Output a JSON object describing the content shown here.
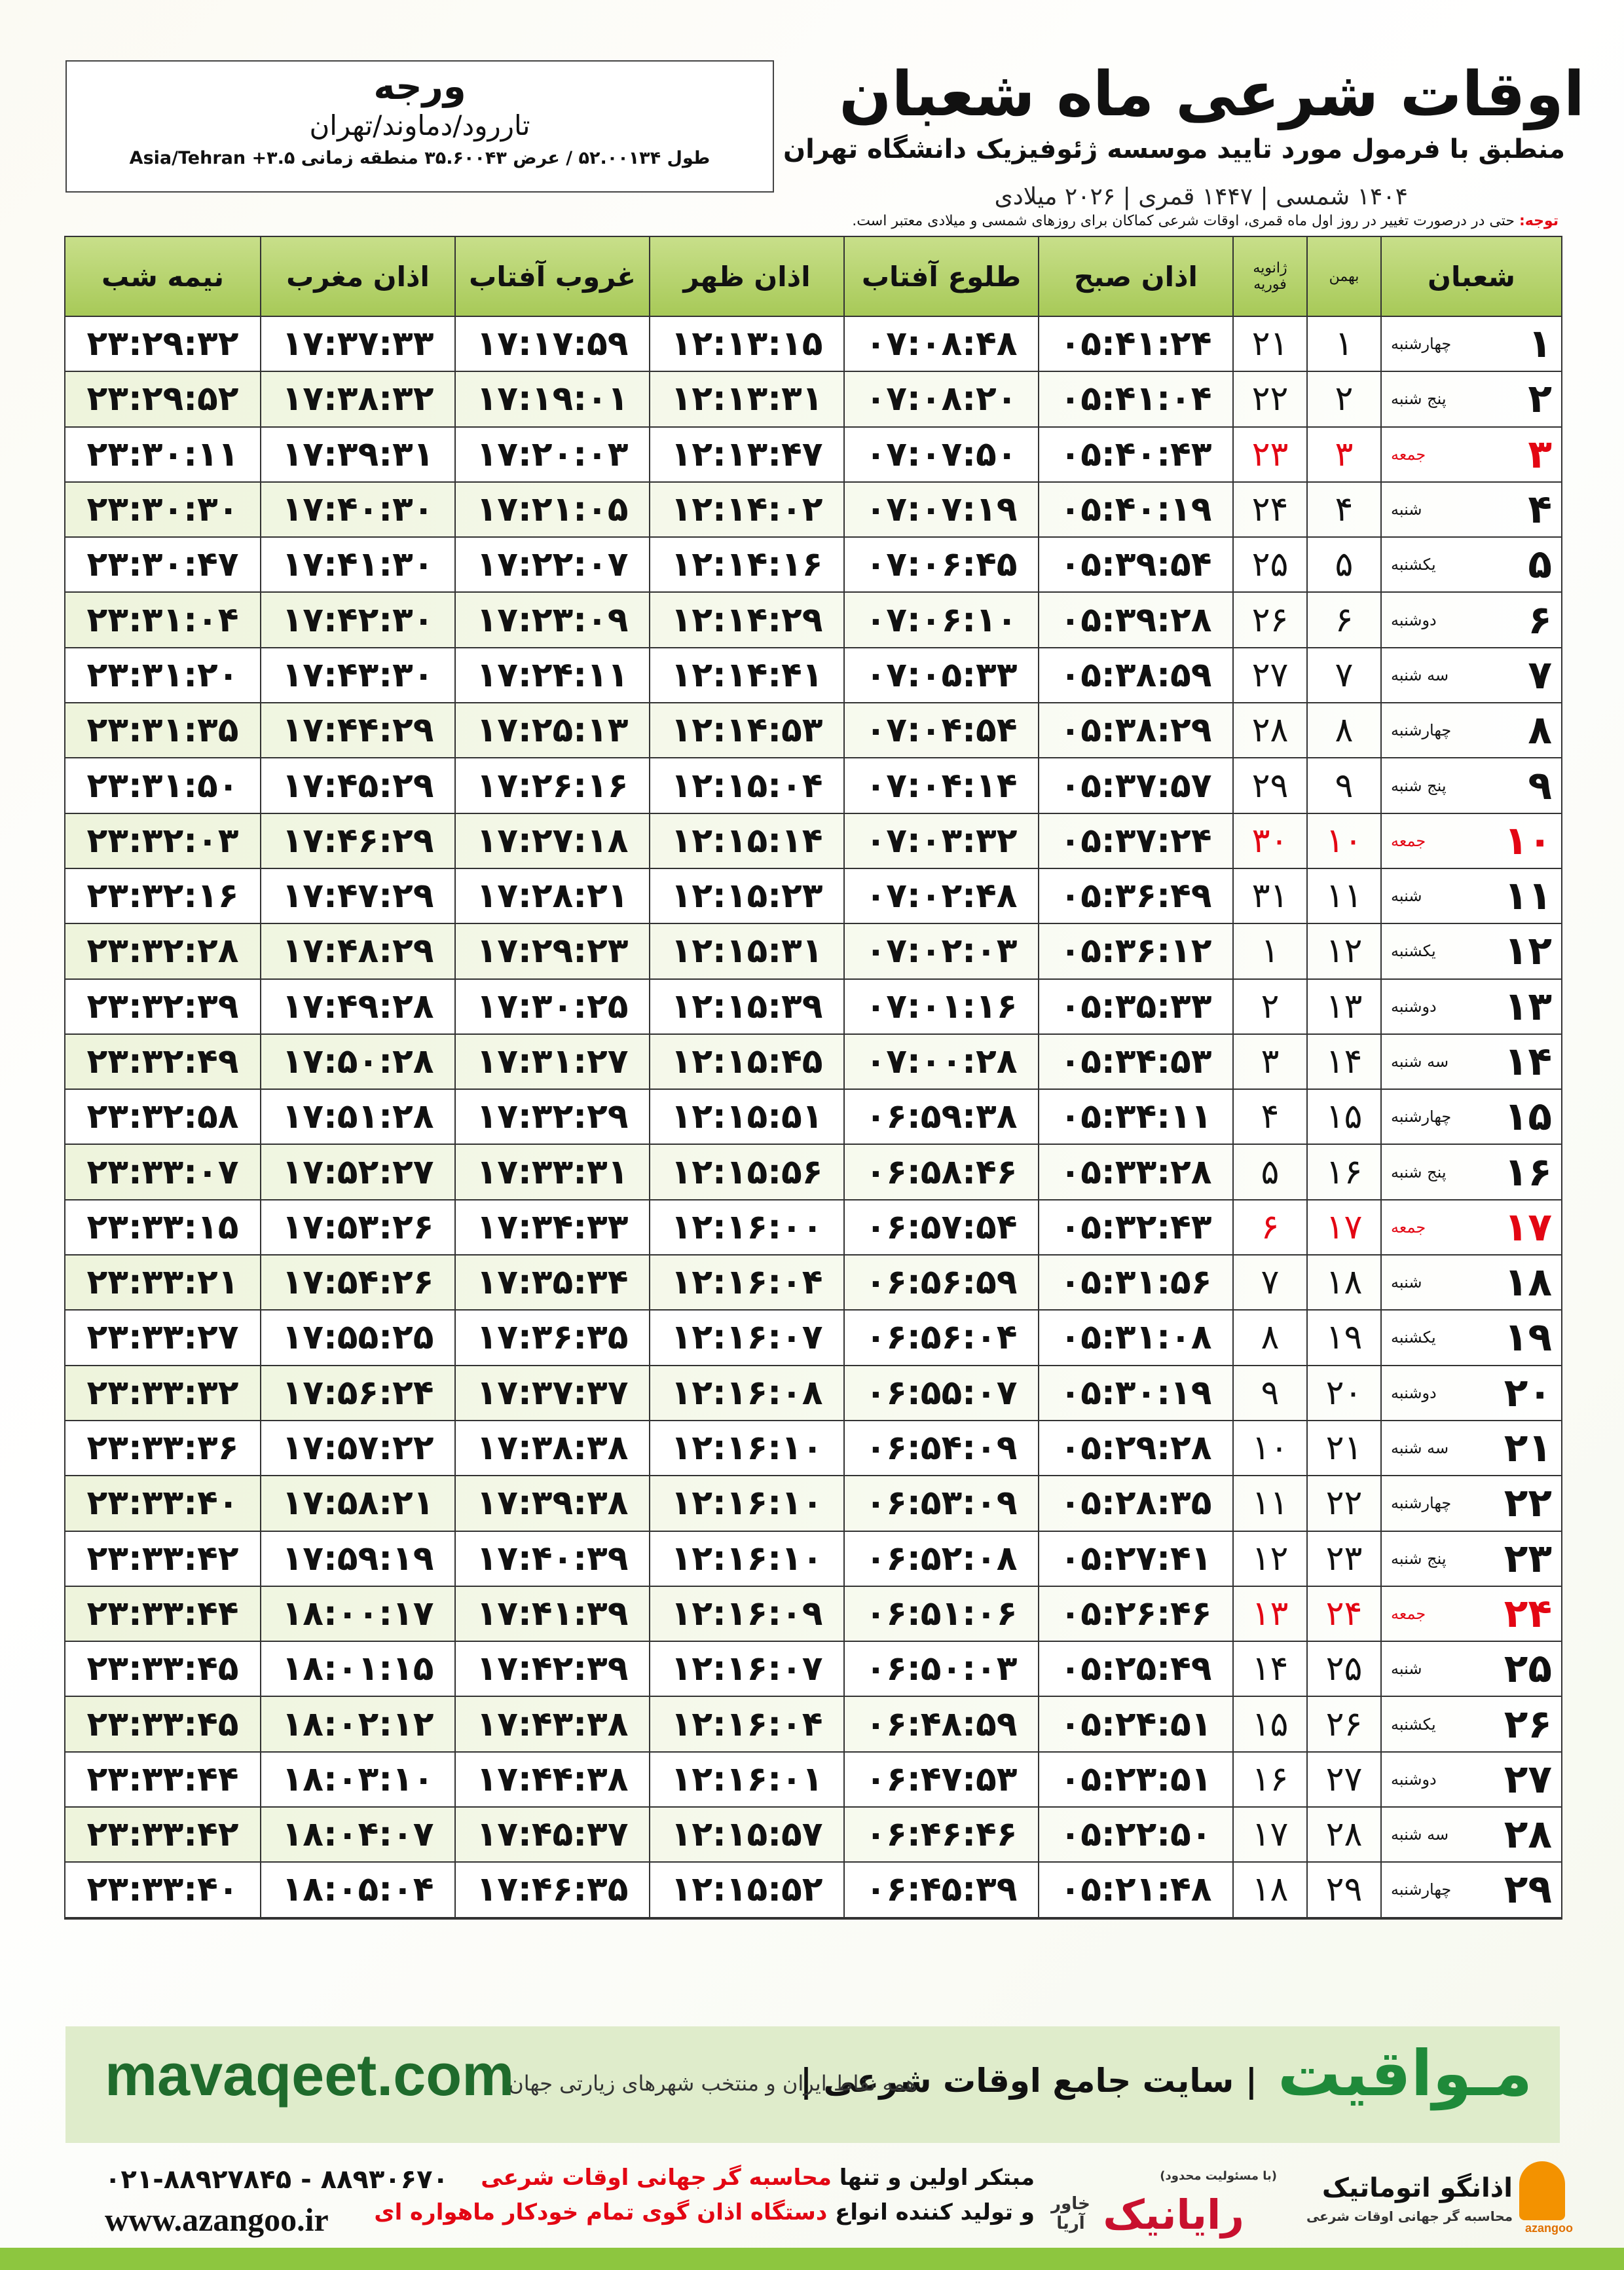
{
  "header": {
    "title": "اوقات شرعی ماه شعبان",
    "subtitle": "منطبق با فرمول مورد تایید موسسه ژئوفیزیک دانشگاه تهران",
    "dates": "۱۴۰۴ شمسی | ۱۴۴۷ قمری | ۲۰۲۶ میلادی",
    "location": {
      "name": "ورجه",
      "region": "تاررود/دماوند/تهران",
      "coords": "طول ۵۲.۰۰۱۳۴ / عرض ۳۵.۶۰۰۴۳ منطقه زمانی ۳.۵+ Asia/Tehran"
    },
    "note": {
      "label": "توجه:",
      "text": "حتی در درصورت تغییر در روز اول ماه قمری، اوقات شرعی کماکان برای روزهای شمسی و میلادی معتبر است."
    }
  },
  "table": {
    "columns": {
      "shaban": "شعبان",
      "bahman": "بهمن",
      "gregorian": [
        "ژانویه",
        "فوریه"
      ],
      "times": [
        "اذان صبح",
        "طلوع آفتاب",
        "اذان ظهر",
        "غروب آفتاب",
        "اذان مغرب",
        "نیمه شب"
      ]
    },
    "rows": [
      {
        "day": "۱",
        "weekday": "چهارشنبه",
        "bahman": "۱",
        "gregorian": "۲۱",
        "times": [
          "۰۵:۴۱:۲۴",
          "۰۷:۰۸:۴۸",
          "۱۲:۱۳:۱۵",
          "۱۷:۱۷:۵۹",
          "۱۷:۳۷:۳۳",
          "۲۳:۲۹:۳۲"
        ]
      },
      {
        "day": "۲",
        "weekday": "پنج شنبه",
        "bahman": "۲",
        "gregorian": "۲۲",
        "times": [
          "۰۵:۴۱:۰۴",
          "۰۷:۰۸:۲۰",
          "۱۲:۱۳:۳۱",
          "۱۷:۱۹:۰۱",
          "۱۷:۳۸:۳۲",
          "۲۳:۲۹:۵۲"
        ]
      },
      {
        "day": "۳",
        "weekday": "جمعه",
        "bahman": "۳",
        "gregorian": "۲۳",
        "color": "#e30613",
        "times": [
          "۰۵:۴۰:۴۳",
          "۰۷:۰۷:۵۰",
          "۱۲:۱۳:۴۷",
          "۱۷:۲۰:۰۳",
          "۱۷:۳۹:۳۱",
          "۲۳:۳۰:۱۱"
        ]
      },
      {
        "day": "۴",
        "weekday": "شنبه",
        "bahman": "۴",
        "gregorian": "۲۴",
        "times": [
          "۰۵:۴۰:۱۹",
          "۰۷:۰۷:۱۹",
          "۱۲:۱۴:۰۲",
          "۱۷:۲۱:۰۵",
          "۱۷:۴۰:۳۰",
          "۲۳:۳۰:۳۰"
        ]
      },
      {
        "day": "۵",
        "weekday": "یکشنبه",
        "bahman": "۵",
        "gregorian": "۲۵",
        "times": [
          "۰۵:۳۹:۵۴",
          "۰۷:۰۶:۴۵",
          "۱۲:۱۴:۱۶",
          "۱۷:۲۲:۰۷",
          "۱۷:۴۱:۳۰",
          "۲۳:۳۰:۴۷"
        ]
      },
      {
        "day": "۶",
        "weekday": "دوشنبه",
        "bahman": "۶",
        "gregorian": "۲۶",
        "times": [
          "۰۵:۳۹:۲۸",
          "۰۷:۰۶:۱۰",
          "۱۲:۱۴:۲۹",
          "۱۷:۲۳:۰۹",
          "۱۷:۴۲:۳۰",
          "۲۳:۳۱:۰۴"
        ]
      },
      {
        "day": "۷",
        "weekday": "سه شنبه",
        "bahman": "۷",
        "gregorian": "۲۷",
        "times": [
          "۰۵:۳۸:۵۹",
          "۰۷:۰۵:۳۳",
          "۱۲:۱۴:۴۱",
          "۱۷:۲۴:۱۱",
          "۱۷:۴۳:۳۰",
          "۲۳:۳۱:۲۰"
        ]
      },
      {
        "day": "۸",
        "weekday": "چهارشنبه",
        "bahman": "۸",
        "gregorian": "۲۸",
        "times": [
          "۰۵:۳۸:۲۹",
          "۰۷:۰۴:۵۴",
          "۱۲:۱۴:۵۳",
          "۱۷:۲۵:۱۳",
          "۱۷:۴۴:۲۹",
          "۲۳:۳۱:۳۵"
        ]
      },
      {
        "day": "۹",
        "weekday": "پنج شنبه",
        "bahman": "۹",
        "gregorian": "۲۹",
        "times": [
          "۰۵:۳۷:۵۷",
          "۰۷:۰۴:۱۴",
          "۱۲:۱۵:۰۴",
          "۱۷:۲۶:۱۶",
          "۱۷:۴۵:۲۹",
          "۲۳:۳۱:۵۰"
        ]
      },
      {
        "day": "۱۰",
        "weekday": "جمعه",
        "bahman": "۱۰",
        "gregorian": "۳۰",
        "color": "#e30613",
        "times": [
          "۰۵:۳۷:۲۴",
          "۰۷:۰۳:۳۲",
          "۱۲:۱۵:۱۴",
          "۱۷:۲۷:۱۸",
          "۱۷:۴۶:۲۹",
          "۲۳:۳۲:۰۳"
        ]
      },
      {
        "day": "۱۱",
        "weekday": "شنبه",
        "bahman": "۱۱",
        "gregorian": "۳۱",
        "times": [
          "۰۵:۳۶:۴۹",
          "۰۷:۰۲:۴۸",
          "۱۲:۱۵:۲۳",
          "۱۷:۲۸:۲۱",
          "۱۷:۴۷:۲۹",
          "۲۳:۳۲:۱۶"
        ]
      },
      {
        "day": "۱۲",
        "weekday": "یکشنبه",
        "bahman": "۱۲",
        "gregorian": "۱",
        "times": [
          "۰۵:۳۶:۱۲",
          "۰۷:۰۲:۰۳",
          "۱۲:۱۵:۳۱",
          "۱۷:۲۹:۲۳",
          "۱۷:۴۸:۲۹",
          "۲۳:۳۲:۲۸"
        ]
      },
      {
        "day": "۱۳",
        "weekday": "دوشنبه",
        "bahman": "۱۳",
        "gregorian": "۲",
        "times": [
          "۰۵:۳۵:۳۳",
          "۰۷:۰۱:۱۶",
          "۱۲:۱۵:۳۹",
          "۱۷:۳۰:۲۵",
          "۱۷:۴۹:۲۸",
          "۲۳:۳۲:۳۹"
        ]
      },
      {
        "day": "۱۴",
        "weekday": "سه شنبه",
        "bahman": "۱۴",
        "gregorian": "۳",
        "times": [
          "۰۵:۳۴:۵۳",
          "۰۷:۰۰:۲۸",
          "۱۲:۱۵:۴۵",
          "۱۷:۳۱:۲۷",
          "۱۷:۵۰:۲۸",
          "۲۳:۳۲:۴۹"
        ]
      },
      {
        "day": "۱۵",
        "weekday": "چهارشنبه",
        "bahman": "۱۵",
        "gregorian": "۴",
        "times": [
          "۰۵:۳۴:۱۱",
          "۰۶:۵۹:۳۸",
          "۱۲:۱۵:۵۱",
          "۱۷:۳۲:۲۹",
          "۱۷:۵۱:۲۸",
          "۲۳:۳۲:۵۸"
        ]
      },
      {
        "day": "۱۶",
        "weekday": "پنج شنبه",
        "bahman": "۱۶",
        "gregorian": "۵",
        "times": [
          "۰۵:۳۳:۲۸",
          "۰۶:۵۸:۴۶",
          "۱۲:۱۵:۵۶",
          "۱۷:۳۳:۳۱",
          "۱۷:۵۲:۲۷",
          "۲۳:۳۳:۰۷"
        ]
      },
      {
        "day": "۱۷",
        "weekday": "جمعه",
        "bahman": "۱۷",
        "gregorian": "۶",
        "color": "#e30613",
        "times": [
          "۰۵:۳۲:۴۳",
          "۰۶:۵۷:۵۴",
          "۱۲:۱۶:۰۰",
          "۱۷:۳۴:۳۳",
          "۱۷:۵۳:۲۶",
          "۲۳:۳۳:۱۵"
        ]
      },
      {
        "day": "۱۸",
        "weekday": "شنبه",
        "bahman": "۱۸",
        "gregorian": "۷",
        "times": [
          "۰۵:۳۱:۵۶",
          "۰۶:۵۶:۵۹",
          "۱۲:۱۶:۰۴",
          "۱۷:۳۵:۳۴",
          "۱۷:۵۴:۲۶",
          "۲۳:۳۳:۲۱"
        ]
      },
      {
        "day": "۱۹",
        "weekday": "یکشنبه",
        "bahman": "۱۹",
        "gregorian": "۸",
        "times": [
          "۰۵:۳۱:۰۸",
          "۰۶:۵۶:۰۴",
          "۱۲:۱۶:۰۷",
          "۱۷:۳۶:۳۵",
          "۱۷:۵۵:۲۵",
          "۲۳:۳۳:۲۷"
        ]
      },
      {
        "day": "۲۰",
        "weekday": "دوشنبه",
        "bahman": "۲۰",
        "gregorian": "۹",
        "times": [
          "۰۵:۳۰:۱۹",
          "۰۶:۵۵:۰۷",
          "۱۲:۱۶:۰۸",
          "۱۷:۳۷:۳۷",
          "۱۷:۵۶:۲۴",
          "۲۳:۳۳:۳۲"
        ]
      },
      {
        "day": "۲۱",
        "weekday": "سه شنبه",
        "bahman": "۲۱",
        "gregorian": "۱۰",
        "times": [
          "۰۵:۲۹:۲۸",
          "۰۶:۵۴:۰۹",
          "۱۲:۱۶:۱۰",
          "۱۷:۳۸:۳۸",
          "۱۷:۵۷:۲۲",
          "۲۳:۳۳:۳۶"
        ]
      },
      {
        "day": "۲۲",
        "weekday": "چهارشنبه",
        "bahman": "۲۲",
        "gregorian": "۱۱",
        "times": [
          "۰۵:۲۸:۳۵",
          "۰۶:۵۳:۰۹",
          "۱۲:۱۶:۱۰",
          "۱۷:۳۹:۳۸",
          "۱۷:۵۸:۲۱",
          "۲۳:۳۳:۴۰"
        ]
      },
      {
        "day": "۲۳",
        "weekday": "پنج شنبه",
        "bahman": "۲۳",
        "gregorian": "۱۲",
        "times": [
          "۰۵:۲۷:۴۱",
          "۰۶:۵۲:۰۸",
          "۱۲:۱۶:۱۰",
          "۱۷:۴۰:۳۹",
          "۱۷:۵۹:۱۹",
          "۲۳:۳۳:۴۲"
        ]
      },
      {
        "day": "۲۴",
        "weekday": "جمعه",
        "bahman": "۲۴",
        "gregorian": "۱۳",
        "color": "#e30613",
        "times": [
          "۰۵:۲۶:۴۶",
          "۰۶:۵۱:۰۶",
          "۱۲:۱۶:۰۹",
          "۱۷:۴۱:۳۹",
          "۱۸:۰۰:۱۷",
          "۲۳:۳۳:۴۴"
        ]
      },
      {
        "day": "۲۵",
        "weekday": "شنبه",
        "bahman": "۲۵",
        "gregorian": "۱۴",
        "times": [
          "۰۵:۲۵:۴۹",
          "۰۶:۵۰:۰۳",
          "۱۲:۱۶:۰۷",
          "۱۷:۴۲:۳۹",
          "۱۸:۰۱:۱۵",
          "۲۳:۳۳:۴۵"
        ]
      },
      {
        "day": "۲۶",
        "weekday": "یکشنبه",
        "bahman": "۲۶",
        "gregorian": "۱۵",
        "times": [
          "۰۵:۲۴:۵۱",
          "۰۶:۴۸:۵۹",
          "۱۲:۱۶:۰۴",
          "۱۷:۴۳:۳۸",
          "۱۸:۰۲:۱۲",
          "۲۳:۳۳:۴۵"
        ]
      },
      {
        "day": "۲۷",
        "weekday": "دوشنبه",
        "bahman": "۲۷",
        "gregorian": "۱۶",
        "times": [
          "۰۵:۲۳:۵۱",
          "۰۶:۴۷:۵۳",
          "۱۲:۱۶:۰۱",
          "۱۷:۴۴:۳۸",
          "۱۸:۰۳:۱۰",
          "۲۳:۳۳:۴۴"
        ]
      },
      {
        "day": "۲۸",
        "weekday": "سه شنبه",
        "bahman": "۲۸",
        "gregorian": "۱۷",
        "times": [
          "۰۵:۲۲:۵۰",
          "۰۶:۴۶:۴۶",
          "۱۲:۱۵:۵۷",
          "۱۷:۴۵:۳۷",
          "۱۸:۰۴:۰۷",
          "۲۳:۳۳:۴۲"
        ]
      },
      {
        "day": "۲۹",
        "weekday": "چهارشنبه",
        "bahman": "۲۹",
        "gregorian": "۱۸",
        "times": [
          "۰۵:۲۱:۴۸",
          "۰۶:۴۵:۳۹",
          "۱۲:۱۵:۵۲",
          "۱۷:۴۶:۳۵",
          "۱۸:۰۵:۰۴",
          "۲۳:۳۳:۴۰"
        ]
      }
    ]
  },
  "footer": {
    "site": "mavaqeet.com",
    "brand": "مـواقیت",
    "slogan": "سایت جامع اوقات شرعی",
    "coverage": "همه نقاط ایران و منتخب شهرهای زیارتی جهان",
    "phones": "۰۲۱-۸۸۹۲۷۸۴۵ - ۸۸۹۳۰۶۷۰",
    "web": "www.azangoo.ir",
    "line1": {
      "start": "مبتکر اولین و تنها",
      "highlight": "محاسبه گر جهانی اوقات شرعی"
    },
    "line2": {
      "start": "و تولید کننده انواع",
      "highlight": "دستگاه اذان گوی تمام خودکار ماهواره ای"
    },
    "logos": {
      "rayanik": "رایانیک",
      "khavar": "خاور آریا",
      "limited": "(با مسئولیت محدود)",
      "azangoo": "اذانگو اتوماتیک",
      "azangoo_sub": "محاسبه گر جهانی اوقات شرعی",
      "azangoo_latin": "azangoo"
    }
  }
}
